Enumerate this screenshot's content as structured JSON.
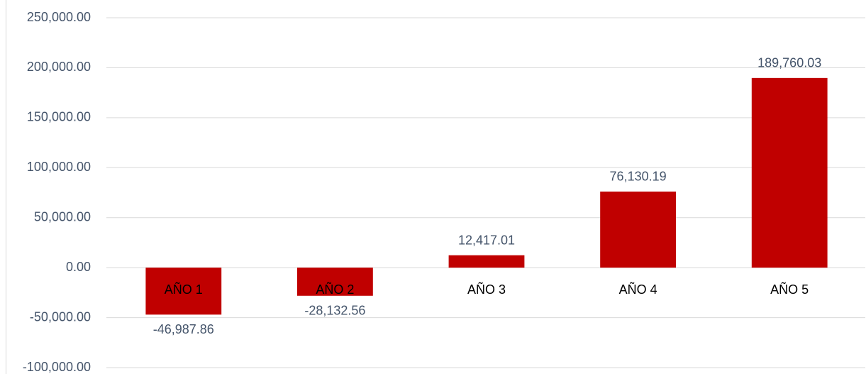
{
  "chart_data": {
    "type": "bar",
    "categories": [
      "AÑO 1",
      "AÑO 2",
      "AÑO 3",
      "AÑO 4",
      "AÑO 5"
    ],
    "values": [
      -46987.86,
      -28132.56,
      12417.01,
      76130.19,
      189760.03
    ],
    "value_labels": [
      "-46,987.86",
      "-28,132.56",
      "12,417.01",
      "76,130.19",
      "189,760.03"
    ],
    "color": "#c00000",
    "ylim": [
      -100000,
      250000
    ],
    "yticks": [
      {
        "value": -100000,
        "label": "-100,000.00"
      },
      {
        "value": -50000,
        "label": "-50,000.00"
      },
      {
        "value": 0,
        "label": "0.00"
      },
      {
        "value": 50000,
        "label": "50,000.00"
      },
      {
        "value": 100000,
        "label": "100,000.00"
      },
      {
        "value": 150000,
        "label": "150,000.00"
      },
      {
        "value": 200000,
        "label": "200,000.00"
      },
      {
        "value": 250000,
        "label": "250,000.00"
      }
    ],
    "grid": true
  }
}
